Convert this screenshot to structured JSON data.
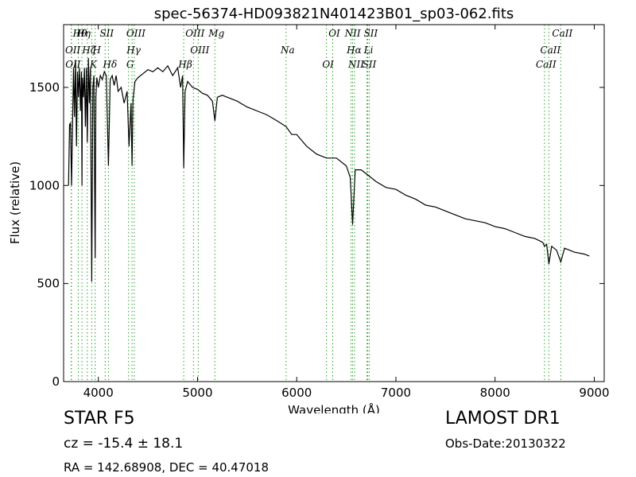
{
  "chart_data": {
    "type": "line",
    "title": "spec-56374-HD093821N401423B01_sp03-062.fits",
    "xlabel": "Wavelength (Å)",
    "ylabel": "Flux (relative)",
    "xlim": [
      3650,
      9100
    ],
    "ylim": [
      0,
      1820
    ],
    "xticks": [
      4000,
      5000,
      6000,
      7000,
      8000,
      9000
    ],
    "yticks": [
      0,
      500,
      1000,
      1500
    ],
    "grid": false,
    "line_color": "#000000",
    "marker_color": "#2ca02c",
    "series": [
      {
        "x": [
          3700,
          3710,
          3720,
          3730,
          3740,
          3750,
          3760,
          3770,
          3780,
          3790,
          3800,
          3810,
          3820,
          3830,
          3835,
          3840,
          3850,
          3860,
          3870,
          3880,
          3889,
          3900,
          3910,
          3920,
          3934,
          3945,
          3955,
          3968,
          3975,
          3985,
          4000,
          4020,
          4040,
          4060,
          4080,
          4102,
          4120,
          4140,
          4160,
          4180,
          4200,
          4230,
          4260,
          4290,
          4310,
          4330,
          4340,
          4350,
          4370,
          4400,
          4450,
          4500,
          4550,
          4600,
          4650,
          4700,
          4750,
          4800,
          4830,
          4850,
          4861,
          4875,
          4900,
          4950,
          5000,
          5050,
          5100,
          5150,
          5175,
          5200,
          5250,
          5300,
          5400,
          5500,
          5600,
          5700,
          5800,
          5893,
          5950,
          6000,
          6100,
          6200,
          6300,
          6400,
          6500,
          6540,
          6563,
          6590,
          6650,
          6700,
          6800,
          6900,
          7000,
          7100,
          7200,
          7300,
          7400,
          7500,
          7600,
          7700,
          7800,
          7900,
          8000,
          8100,
          8200,
          8300,
          8400,
          8480,
          8498,
          8520,
          8542,
          8570,
          8620,
          8662,
          8700,
          8800,
          8900,
          8950
        ],
        "y": [
          1000,
          1310,
          1320,
          1000,
          1300,
          1600,
          1350,
          1640,
          1200,
          1580,
          1450,
          1600,
          1380,
          1580,
          1000,
          1550,
          1450,
          1600,
          1300,
          1600,
          1220,
          1650,
          1420,
          1600,
          510,
          1500,
          1560,
          630,
          1450,
          1550,
          1500,
          1560,
          1540,
          1580,
          1560,
          1100,
          1540,
          1560,
          1510,
          1560,
          1480,
          1500,
          1420,
          1480,
          1200,
          1420,
          1100,
          1440,
          1530,
          1550,
          1570,
          1590,
          1580,
          1600,
          1580,
          1610,
          1560,
          1600,
          1500,
          1560,
          1090,
          1480,
          1530,
          1500,
          1490,
          1470,
          1460,
          1430,
          1330,
          1450,
          1460,
          1450,
          1430,
          1400,
          1380,
          1360,
          1330,
          1300,
          1260,
          1260,
          1200,
          1160,
          1140,
          1140,
          1100,
          1040,
          800,
          1080,
          1080,
          1060,
          1020,
          990,
          980,
          950,
          930,
          900,
          890,
          870,
          850,
          830,
          820,
          810,
          790,
          780,
          760,
          740,
          730,
          710,
          690,
          700,
          600,
          690,
          670,
          610,
          680,
          660,
          650,
          640
        ]
      }
    ],
    "lines": [
      {
        "label": "Hθ",
        "x": 3798
      },
      {
        "label": "OII",
        "x": 3727
      },
      {
        "label": "OII",
        "x": 3729
      },
      {
        "label": "Hη",
        "x": 3835
      },
      {
        "label": "Hζ",
        "x": 3889
      },
      {
        "label": "K",
        "x": 3934
      },
      {
        "label": "SII",
        "x": 4069
      },
      {
        "label": "H",
        "x": 3968
      },
      {
        "label": "Hδ",
        "x": 4102
      },
      {
        "label": "OIII",
        "x": 4363
      },
      {
        "label": "Hγ",
        "x": 4340
      },
      {
        "label": "G",
        "x": 4305
      },
      {
        "label": "OIII",
        "x": 4959
      },
      {
        "label": "OIII",
        "x": 5007
      },
      {
        "label": "Hβ",
        "x": 4861
      },
      {
        "label": "Mg",
        "x": 5175
      },
      {
        "label": "Na",
        "x": 5893
      },
      {
        "label": "OI",
        "x": 6300
      },
      {
        "label": "OI",
        "x": 6363
      },
      {
        "label": "Hα",
        "x": 6563
      },
      {
        "label": "SII",
        "x": 6716
      },
      {
        "label": "NII",
        "x": 6548
      },
      {
        "label": "Li",
        "x": 6708
      },
      {
        "label": "NII",
        "x": 6583
      },
      {
        "label": "SII",
        "x": 6731
      },
      {
        "label": "CaII",
        "x": 8542
      },
      {
        "label": "CaII",
        "x": 8498
      },
      {
        "label": "CaII",
        "x": 8662
      }
    ]
  },
  "footer": {
    "classification": "STAR   F5",
    "survey": "LAMOST DR1",
    "redshift": "cz = -15.4 ± 18.1",
    "obs_date": "Obs-Date:20130322",
    "coords": "RA = 142.68908, DEC = 40.47018"
  }
}
